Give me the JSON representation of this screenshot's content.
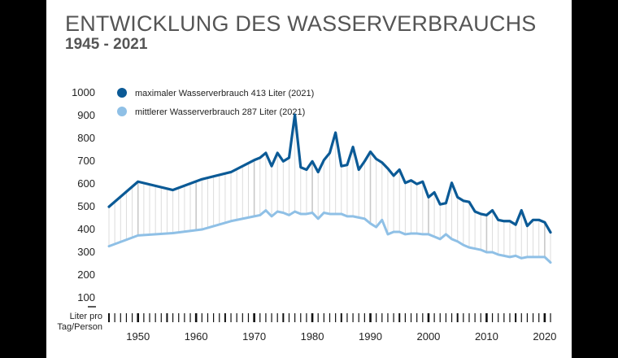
{
  "chart_data": {
    "type": "line",
    "title": "ENTWICKLUNG DES WASSERVERBRAUCHS",
    "subtitle": "1945 - 2021",
    "ylabel": "Liter pro Tag/Person",
    "ylim": [
      0,
      1000
    ],
    "yticks": [
      1000,
      900,
      800,
      700,
      600,
      500,
      400,
      300,
      200,
      100
    ],
    "xticks": [
      1950,
      1960,
      1970,
      1980,
      1990,
      2000,
      2010,
      2020
    ],
    "xlim": [
      1945,
      2021
    ],
    "grid": false,
    "legend_position": "top-left",
    "series": [
      {
        "name": "maximaler Wasserverbrauch 413 Liter (2021)",
        "color": "#0b5a96",
        "x": [
          1945,
          1950,
          1956,
          1961,
          1966,
          1970,
          1971,
          1972,
          1973,
          1974,
          1975,
          1976,
          1977,
          1978,
          1979,
          1980,
          1981,
          1982,
          1983,
          1984,
          1985,
          1986,
          1987,
          1988,
          1989,
          1990,
          1991,
          1992,
          1993,
          1994,
          1995,
          1996,
          1997,
          1998,
          1999,
          2000,
          2001,
          2002,
          2003,
          2004,
          2005,
          2006,
          2007,
          2008,
          2009,
          2010,
          2011,
          2012,
          2013,
          2014,
          2015,
          2016,
          2017,
          2018,
          2019,
          2020,
          2021
        ],
        "y": [
          520,
          625,
          590,
          635,
          665,
          715,
          725,
          745,
          690,
          745,
          710,
          725,
          905,
          685,
          675,
          710,
          665,
          715,
          745,
          830,
          690,
          695,
          770,
          675,
          710,
          750,
          720,
          705,
          680,
          650,
          675,
          620,
          630,
          615,
          625,
          560,
          580,
          530,
          535,
          620,
          560,
          545,
          540,
          500,
          490,
          485,
          505,
          465,
          460,
          460,
          445,
          505,
          440,
          465,
          465,
          455,
          413
        ]
      },
      {
        "name": "mittlerer Wasserverbrauch 287 Liter (2021)",
        "color": "#8fc0e6",
        "x": [
          1945,
          1950,
          1956,
          1961,
          1966,
          1970,
          1971,
          1972,
          1973,
          1974,
          1975,
          1976,
          1977,
          1978,
          1979,
          1980,
          1981,
          1982,
          1983,
          1984,
          1985,
          1986,
          1987,
          1988,
          1989,
          1990,
          1991,
          1992,
          1993,
          1994,
          1995,
          1996,
          1997,
          1998,
          1999,
          2000,
          2001,
          2002,
          2003,
          2004,
          2005,
          2006,
          2007,
          2008,
          2009,
          2010,
          2011,
          2012,
          2013,
          2014,
          2015,
          2016,
          2017,
          2018,
          2019,
          2020,
          2021
        ],
        "y": [
          355,
          400,
          410,
          425,
          460,
          480,
          485,
          505,
          480,
          500,
          495,
          485,
          500,
          490,
          490,
          495,
          470,
          495,
          490,
          490,
          490,
          480,
          480,
          475,
          470,
          450,
          435,
          465,
          405,
          415,
          415,
          405,
          408,
          408,
          405,
          405,
          395,
          385,
          405,
          385,
          375,
          360,
          350,
          345,
          340,
          330,
          330,
          320,
          315,
          310,
          315,
          305,
          310,
          310,
          310,
          310,
          287
        ]
      }
    ]
  }
}
